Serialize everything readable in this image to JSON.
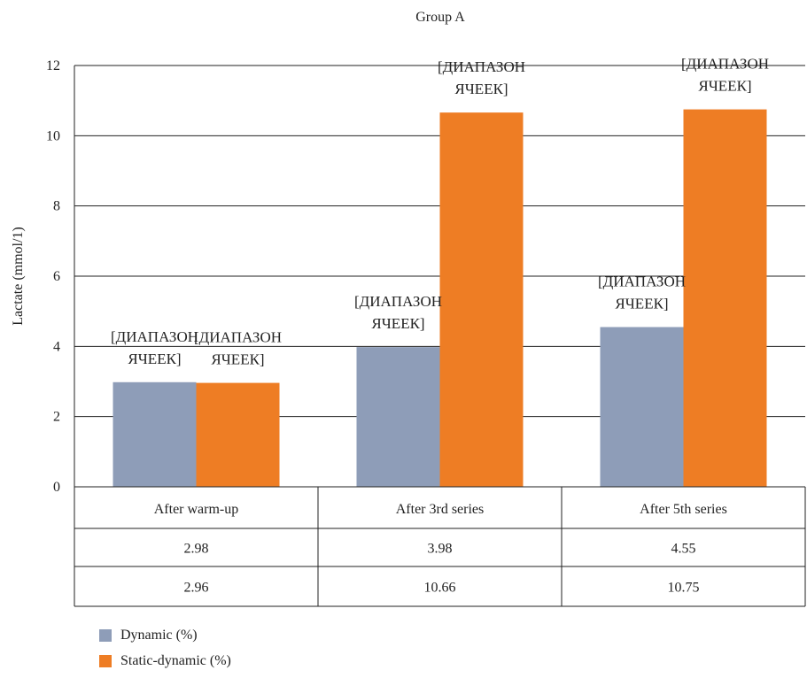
{
  "chart_data": {
    "type": "bar",
    "title": "Group A",
    "ylabel": "Lactate (mmol/1)",
    "xlabel": "",
    "ylim": [
      0,
      12
    ],
    "yticks": [
      0,
      2,
      4,
      6,
      8,
      10,
      12
    ],
    "grid": true,
    "legend_position": "bottom-left",
    "categories": [
      "After warm-up",
      "After 3rd series",
      "After 5th series"
    ],
    "series": [
      {
        "name": "Dynamic (%)",
        "color": "#8e9db8",
        "values": [
          2.98,
          3.98,
          4.55
        ],
        "table_values": [
          "2.98",
          "3.98",
          "4.55"
        ]
      },
      {
        "name": "Static-dynamic (%)",
        "color": "#ee7d24",
        "values": [
          2.96,
          10.66,
          10.75
        ],
        "table_values": [
          "2.96",
          "10.66",
          "10.75"
        ]
      }
    ],
    "data_label_lines": [
      "[ДИАПАЗОН",
      "ЯЧЕЕК]"
    ],
    "data_table": true
  }
}
